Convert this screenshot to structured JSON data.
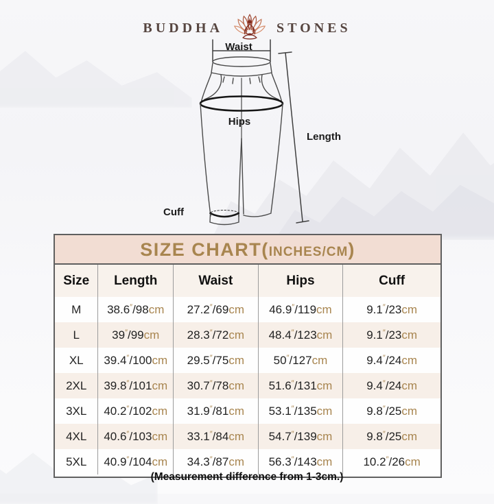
{
  "brand": {
    "left": "BUDDHA",
    "right": "STONES"
  },
  "diagram": {
    "waist_label": "Waist",
    "hips_label": "Hips",
    "length_label": "Length",
    "cuff_label": "Cuff"
  },
  "table": {
    "title": "SIZE CHART(",
    "title_unit": "INCHES/CM",
    "title_close": ")",
    "columns": [
      "Size",
      "Length",
      "Waist",
      "Hips",
      "Cuff"
    ],
    "units": {
      "inch_mark": "″",
      "separator": "/",
      "cm_label": "cm"
    },
    "rows": [
      {
        "size": "M",
        "length": {
          "in": "38.6",
          "cm": "98"
        },
        "waist": {
          "in": "27.2",
          "cm": "69"
        },
        "hips": {
          "in": "46.9",
          "cm": "119"
        },
        "cuff": {
          "in": "9.1",
          "cm": "23"
        }
      },
      {
        "size": "L",
        "length": {
          "in": "39",
          "cm": "99"
        },
        "waist": {
          "in": "28.3",
          "cm": "72"
        },
        "hips": {
          "in": "48.4",
          "cm": "123"
        },
        "cuff": {
          "in": "9.1",
          "cm": "23"
        }
      },
      {
        "size": "XL",
        "length": {
          "in": "39.4",
          "cm": "100"
        },
        "waist": {
          "in": "29.5",
          "cm": "75"
        },
        "hips": {
          "in": "50",
          "cm": "127"
        },
        "cuff": {
          "in": "9.4",
          "cm": "24"
        }
      },
      {
        "size": "2XL",
        "length": {
          "in": "39.8",
          "cm": "101"
        },
        "waist": {
          "in": "30.7",
          "cm": "78"
        },
        "hips": {
          "in": "51.6",
          "cm": "131"
        },
        "cuff": {
          "in": "9.4",
          "cm": "24"
        }
      },
      {
        "size": "3XL",
        "length": {
          "in": "40.2",
          "cm": "102"
        },
        "waist": {
          "in": "31.9",
          "cm": "81"
        },
        "hips": {
          "in": "53.1",
          "cm": "135"
        },
        "cuff": {
          "in": "9.8",
          "cm": "25"
        }
      },
      {
        "size": "4XL",
        "length": {
          "in": "40.6",
          "cm": "103"
        },
        "waist": {
          "in": "33.1",
          "cm": "84"
        },
        "hips": {
          "in": "54.7",
          "cm": "139"
        },
        "cuff": {
          "in": "9.8",
          "cm": "25"
        }
      },
      {
        "size": "5XL",
        "length": {
          "in": "40.9",
          "cm": "104"
        },
        "waist": {
          "in": "34.3",
          "cm": "87"
        },
        "hips": {
          "in": "56.3",
          "cm": "143"
        },
        "cuff": {
          "in": "10.2",
          "cm": "26"
        }
      }
    ]
  },
  "note": "(Measurement difference from 1-3cm.)",
  "colors": {
    "accent_gold": "#a8854f",
    "header_bg": "#f2ddd3",
    "colhead_bg": "#f8f2ec",
    "row_alt_bg": "#f7efe8",
    "brand_text": "#564540"
  },
  "chart_data": {
    "type": "table",
    "title": "SIZE CHART(INCHES/CM)",
    "columns": [
      "Size",
      "Length",
      "Waist",
      "Hips",
      "Cuff"
    ],
    "rows": [
      [
        "M",
        "38.6″/98cm",
        "27.2″/69cm",
        "46.9″/119cm",
        "9.1″/23cm"
      ],
      [
        "L",
        "39″/99cm",
        "28.3″/72cm",
        "48.4″/123cm",
        "9.1″/23cm"
      ],
      [
        "XL",
        "39.4″/100cm",
        "29.5″/75cm",
        "50″/127cm",
        "9.4″/24cm"
      ],
      [
        "2XL",
        "39.8″/101cm",
        "30.7″/78cm",
        "51.6″/131cm",
        "9.4″/24cm"
      ],
      [
        "3XL",
        "40.2″/102cm",
        "31.9″/81cm",
        "53.1″/135cm",
        "9.8″/25cm"
      ],
      [
        "4XL",
        "40.6″/103cm",
        "33.1″/84cm",
        "54.7″/139cm",
        "9.8″/25cm"
      ],
      [
        "5XL",
        "40.9″/104cm",
        "34.3″/87cm",
        "56.3″/143cm",
        "10.2″/26cm"
      ]
    ],
    "footnote": "(Measurement difference from 1-3cm.)",
    "diagram_labels": [
      "Waist",
      "Hips",
      "Length",
      "Cuff"
    ]
  }
}
